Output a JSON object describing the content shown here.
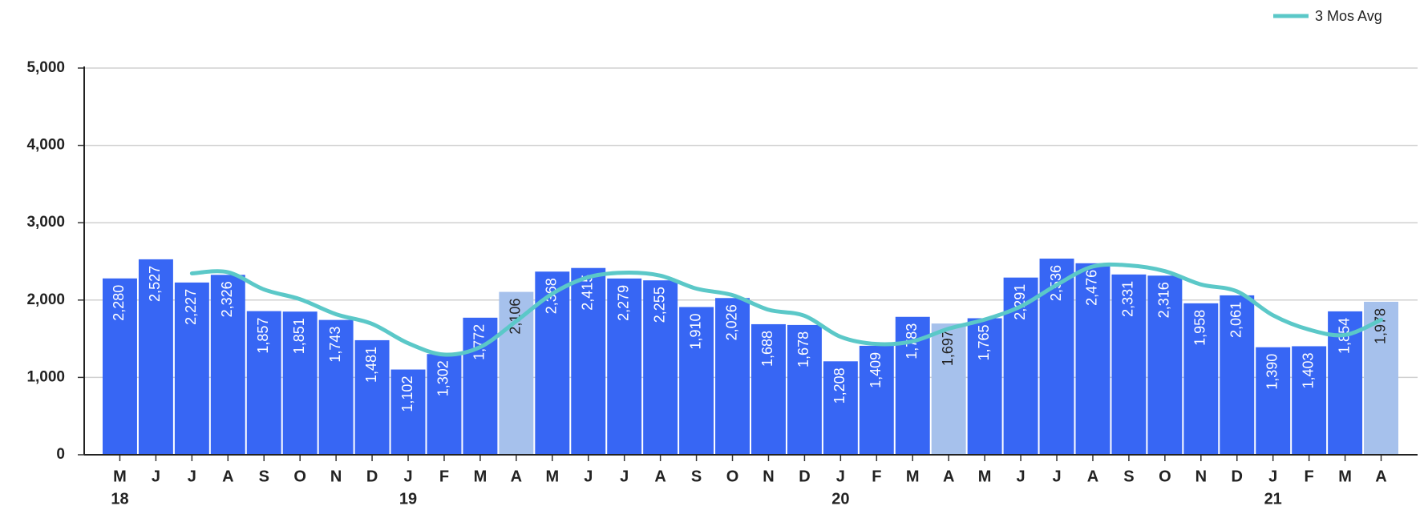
{
  "chart_data": {
    "type": "bar",
    "categories": [
      "M",
      "J",
      "J",
      "A",
      "S",
      "O",
      "N",
      "D",
      "J",
      "F",
      "M",
      "A",
      "M",
      "J",
      "J",
      "A",
      "S",
      "O",
      "N",
      "D",
      "J",
      "F",
      "M",
      "A",
      "M",
      "J",
      "J",
      "A",
      "S",
      "O",
      "N",
      "D",
      "J",
      "F",
      "M",
      "A"
    ],
    "years": [
      "18",
      null,
      null,
      null,
      null,
      null,
      null,
      null,
      "19",
      null,
      null,
      null,
      null,
      null,
      null,
      null,
      null,
      null,
      null,
      null,
      "20",
      null,
      null,
      null,
      null,
      null,
      null,
      null,
      null,
      null,
      null,
      null,
      "21",
      null,
      null,
      null
    ],
    "values": [
      2280,
      2527,
      2227,
      2326,
      1857,
      1851,
      1743,
      1481,
      1102,
      1302,
      1772,
      2106,
      2368,
      2415,
      2279,
      2255,
      1910,
      2026,
      1688,
      1678,
      1208,
      1409,
      1783,
      1697,
      1765,
      2291,
      2536,
      2476,
      2331,
      2316,
      1958,
      2061,
      1390,
      1403,
      1854,
      1978
    ],
    "value_labels": [
      "2,280",
      "2,527",
      "2,227",
      "2,326",
      "1,857",
      "1,851",
      "1,743",
      "1,481",
      "1,102",
      "1,302",
      "1,772",
      "2,106",
      "2,368",
      "2,415",
      "2,279",
      "2,255",
      "1,910",
      "2,026",
      "1,688",
      "1,678",
      "1,208",
      "1,409",
      "1,783",
      "1,697",
      "1,765",
      "2,291",
      "2,536",
      "2,476",
      "2,331",
      "2,316",
      "1,958",
      "2,061",
      "1,390",
      "1,403",
      "1,854",
      "1,978"
    ],
    "colors": [
      "#3766f4",
      "#3766f4",
      "#3766f4",
      "#3766f4",
      "#3766f4",
      "#3766f4",
      "#3766f4",
      "#3766f4",
      "#3766f4",
      "#3766f4",
      "#3766f4",
      "#a6c1ec",
      "#3766f4",
      "#3766f4",
      "#3766f4",
      "#3766f4",
      "#3766f4",
      "#3766f4",
      "#3766f4",
      "#3766f4",
      "#3766f4",
      "#3766f4",
      "#3766f4",
      "#a6c1ec",
      "#3766f4",
      "#3766f4",
      "#3766f4",
      "#3766f4",
      "#3766f4",
      "#3766f4",
      "#3766f4",
      "#3766f4",
      "#3766f4",
      "#3766f4",
      "#3766f4",
      "#a6c1ec"
    ],
    "line": {
      "name": "3 Mos Avg",
      "color": "#5bc8c8",
      "values": [
        null,
        null,
        2345,
        2360,
        2137,
        2011,
        1817,
        1692,
        1442,
        1295,
        1392,
        1727,
        2082,
        2296,
        2354,
        2316,
        2148,
        2064,
        1875,
        1797,
        1525,
        1432,
        1467,
        1630,
        1748,
        1918,
        2197,
        2434,
        2448,
        2374,
        2202,
        2112,
        1803,
        1618,
        1549,
        1745
      ]
    },
    "ylim": [
      0,
      5000
    ],
    "yticks": [
      0,
      {
        "value": 1000,
        "label": "1,000"
      },
      {
        "value": 2000,
        "label": "2,000"
      },
      {
        "value": 3000,
        "label": "3,000"
      },
      {
        "value": 4000,
        "label": "4,000"
      },
      {
        "value": 5000,
        "label": "5,000"
      }
    ],
    "grid": true,
    "legend": "top-right"
  }
}
